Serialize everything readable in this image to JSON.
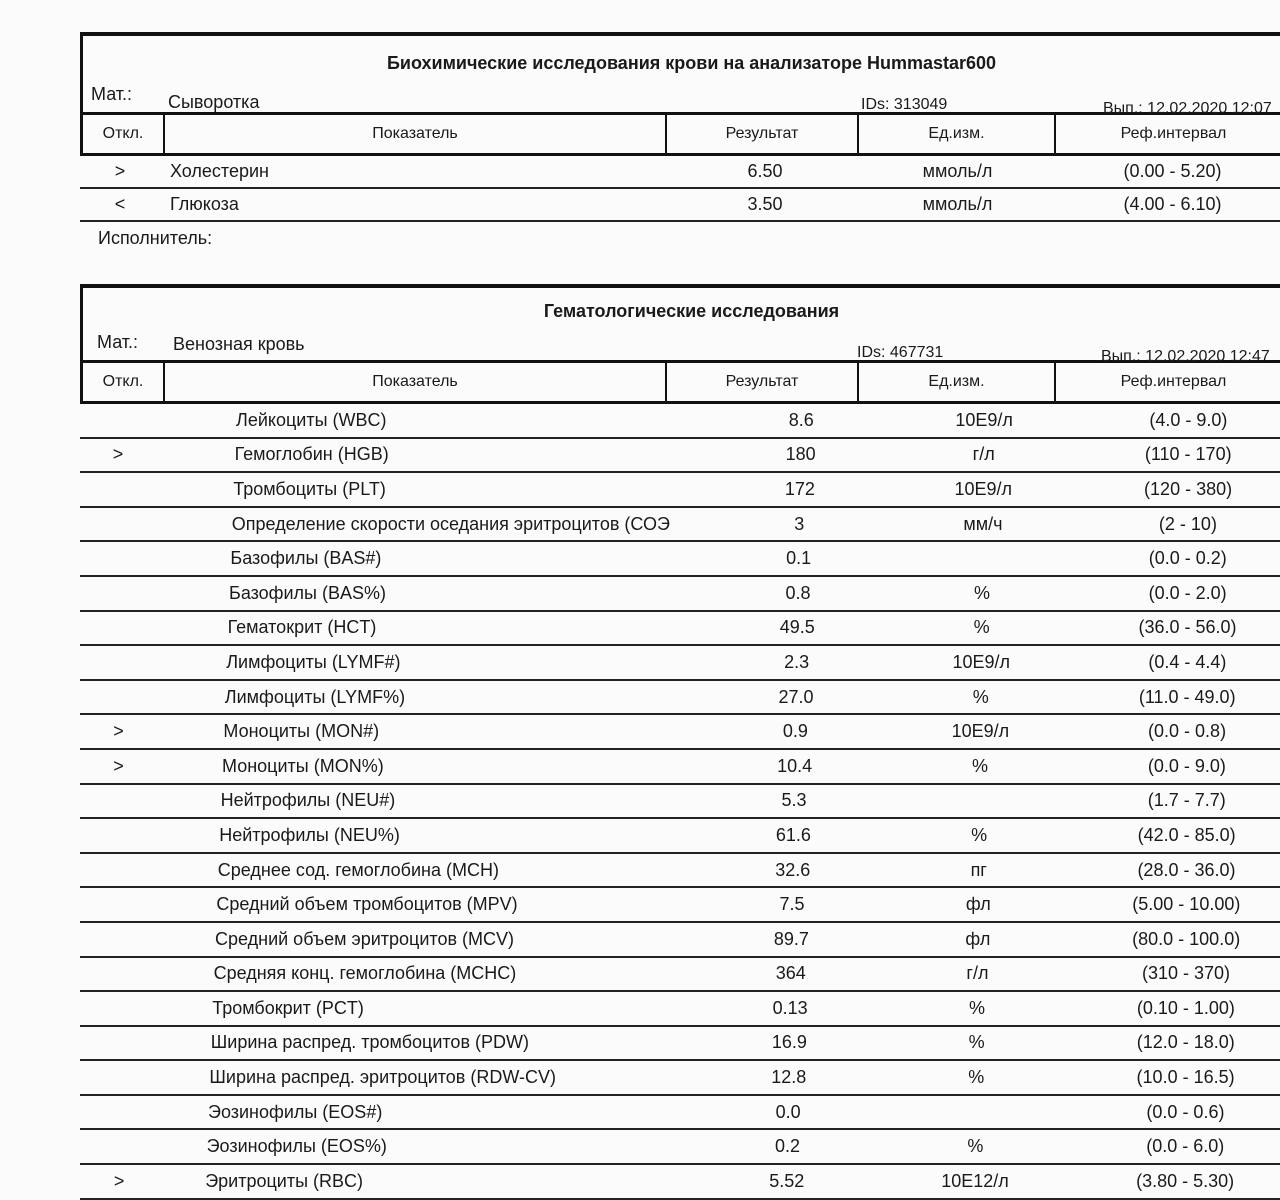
{
  "bio": {
    "title": "Биохимические исследования крови на анализаторе Hummastar600",
    "mat_label": "Мат.:",
    "mat_value": "Сыворотка",
    "ids": "IDs: 313049",
    "done": "Вып.: 12.02.2020 12:07",
    "headers": [
      "Откл.",
      "Показатель",
      "Результат",
      "Ед.изм.",
      "Реф.интервал"
    ],
    "rows": [
      {
        "flag": ">",
        "name": "Холестерин",
        "result": "6.50",
        "unit": "ммоль/л",
        "ref": "(0.00 - 5.20)"
      },
      {
        "flag": "<",
        "name": "Глюкоза",
        "result": "3.50",
        "unit": "ммоль/л",
        "ref": "(4.00 - 6.10)"
      }
    ],
    "executor": "Исполнитель:"
  },
  "hem": {
    "title": "Гематологические исследования",
    "mat_label": "Мат.:",
    "mat_value": "Венозная кровь",
    "ids": "IDs: 467731",
    "done": "Вып.: 12.02.2020 12:47",
    "headers": [
      "Откл.",
      "Показатель",
      "Результат",
      "Ед.изм.",
      "Реф.интервал"
    ],
    "rows": [
      {
        "flag": "",
        "name": "Лейкоциты (WBC)",
        "result": "8.6",
        "unit": "10E9/л",
        "ref": "(4.0 - 9.0)"
      },
      {
        "flag": ">",
        "name": "Гемоглобин (HGB)",
        "result": "180",
        "unit": "г/л",
        "ref": "(110 - 170)"
      },
      {
        "flag": "",
        "name": "Тромбоциты (PLT)",
        "result": "172",
        "unit": "10E9/л",
        "ref": "(120 - 380)"
      },
      {
        "flag": "",
        "name": "Определение скорости оседания эритроцитов (СОЭ",
        "result": "3",
        "unit": "мм/ч",
        "ref": "(2 - 10)"
      },
      {
        "flag": "",
        "name": "Базофилы (BAS#)",
        "result": "0.1",
        "unit": "",
        "ref": "(0.0 - 0.2)"
      },
      {
        "flag": "",
        "name": "Базофилы (BAS%)",
        "result": "0.8",
        "unit": "%",
        "ref": "(0.0 - 2.0)"
      },
      {
        "flag": "",
        "name": "Гематокрит (HCT)",
        "result": "49.5",
        "unit": "%",
        "ref": "(36.0 - 56.0)"
      },
      {
        "flag": "",
        "name": "Лимфоциты (LYMF#)",
        "result": "2.3",
        "unit": "10E9/л",
        "ref": "(0.4 - 4.4)"
      },
      {
        "flag": "",
        "name": "Лимфоциты (LYMF%)",
        "result": "27.0",
        "unit": "%",
        "ref": "(11.0 - 49.0)"
      },
      {
        "flag": ">",
        "name": "Моноциты (MON#)",
        "result": "0.9",
        "unit": "10E9/л",
        "ref": "(0.0 - 0.8)"
      },
      {
        "flag": ">",
        "name": "Моноциты (MON%)",
        "result": "10.4",
        "unit": "%",
        "ref": "(0.0 - 9.0)"
      },
      {
        "flag": "",
        "name": "Нейтрофилы (NEU#)",
        "result": "5.3",
        "unit": "",
        "ref": "(1.7 - 7.7)"
      },
      {
        "flag": "",
        "name": "Нейтрофилы (NEU%)",
        "result": "61.6",
        "unit": "%",
        "ref": "(42.0 - 85.0)"
      },
      {
        "flag": "",
        "name": "Среднее сод. гемоглобина (MCH)",
        "result": "32.6",
        "unit": "пг",
        "ref": "(28.0 - 36.0)"
      },
      {
        "flag": "",
        "name": "Средний объем тромбоцитов (MPV)",
        "result": "7.5",
        "unit": "фл",
        "ref": "(5.00 - 10.00)"
      },
      {
        "flag": "",
        "name": "Средний объем эритроцитов (MCV)",
        "result": "89.7",
        "unit": "фл",
        "ref": "(80.0 - 100.0)"
      },
      {
        "flag": "",
        "name": "Средняя конц. гемоглобина (MCHC)",
        "result": "364",
        "unit": "г/л",
        "ref": "(310 - 370)"
      },
      {
        "flag": "",
        "name": "Тромбокрит (PCT)",
        "result": "0.13",
        "unit": "%",
        "ref": "(0.10 - 1.00)"
      },
      {
        "flag": "",
        "name": "Ширина распред. тромбоцитов (PDW)",
        "result": "16.9",
        "unit": "%",
        "ref": "(12.0 - 18.0)"
      },
      {
        "flag": "",
        "name": "Ширина распред. эритроцитов (RDW-CV)",
        "result": "12.8",
        "unit": "%",
        "ref": "(10.0 - 16.5)"
      },
      {
        "flag": "",
        "name": "Эозинофилы (EOS#)",
        "result": "0.0",
        "unit": "",
        "ref": "(0.0 - 0.6)"
      },
      {
        "flag": "",
        "name": "Эозинофилы (EOS%)",
        "result": "0.2",
        "unit": "%",
        "ref": "(0.0 - 6.0)"
      },
      {
        "flag": ">",
        "name": "Эритроциты (RBC)",
        "result": "5.52",
        "unit": "10E12/л",
        "ref": "(3.80 - 5.30)"
      }
    ]
  }
}
